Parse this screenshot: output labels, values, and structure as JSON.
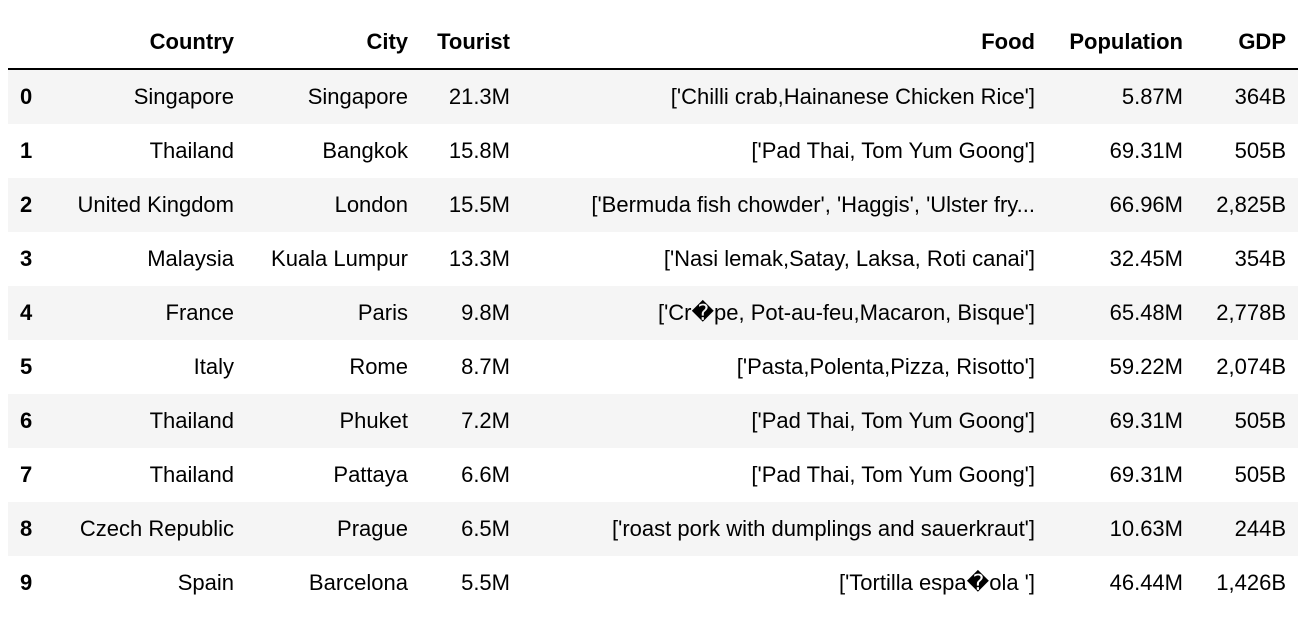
{
  "table": {
    "columns": [
      "",
      "Country",
      "City",
      "Tourist",
      "Food",
      "Population",
      "GDP"
    ],
    "rows": [
      {
        "index": "0",
        "country": "Singapore",
        "city": "Singapore",
        "tourist": "21.3M",
        "food": "['Chilli crab,Hainanese Chicken Rice']",
        "population": "5.87M",
        "gdp": "364B"
      },
      {
        "index": "1",
        "country": "Thailand",
        "city": "Bangkok",
        "tourist": "15.8M",
        "food": "['Pad Thai, Tom Yum Goong']",
        "population": "69.31M",
        "gdp": "505B"
      },
      {
        "index": "2",
        "country": "United Kingdom",
        "city": "London",
        "tourist": "15.5M",
        "food": "['Bermuda fish chowder', 'Haggis', 'Ulster fry...",
        "population": "66.96M",
        "gdp": "2,825B"
      },
      {
        "index": "3",
        "country": "Malaysia",
        "city": "Kuala Lumpur",
        "tourist": "13.3M",
        "food": "['Nasi lemak,Satay, Laksa, Roti canai']",
        "population": "32.45M",
        "gdp": "354B"
      },
      {
        "index": "4",
        "country": "France",
        "city": "Paris",
        "tourist": "9.8M",
        "food": "['Cr�pe, Pot-au-feu,Macaron, Bisque']",
        "population": "65.48M",
        "gdp": "2,778B"
      },
      {
        "index": "5",
        "country": "Italy",
        "city": "Rome",
        "tourist": "8.7M",
        "food": "['Pasta,Polenta,Pizza, Risotto']",
        "population": "59.22M",
        "gdp": "2,074B"
      },
      {
        "index": "6",
        "country": "Thailand",
        "city": "Phuket",
        "tourist": "7.2M",
        "food": "['Pad Thai, Tom Yum Goong']",
        "population": "69.31M",
        "gdp": "505B"
      },
      {
        "index": "7",
        "country": "Thailand",
        "city": "Pattaya",
        "tourist": "6.6M",
        "food": "['Pad Thai, Tom Yum Goong']",
        "population": "69.31M",
        "gdp": "505B"
      },
      {
        "index": "8",
        "country": "Czech Republic",
        "city": "Prague",
        "tourist": "6.5M",
        "food": "['roast pork with dumplings and sauerkraut']",
        "population": "10.63M",
        "gdp": "244B"
      },
      {
        "index": "9",
        "country": "Spain",
        "city": "Barcelona",
        "tourist": "5.5M",
        "food": "['Tortilla espa�ola ']",
        "population": "46.44M",
        "gdp": "1,426B"
      }
    ]
  },
  "colors": {
    "stripe": "#f5f5f5",
    "background": "#ffffff",
    "rule": "#000000"
  }
}
